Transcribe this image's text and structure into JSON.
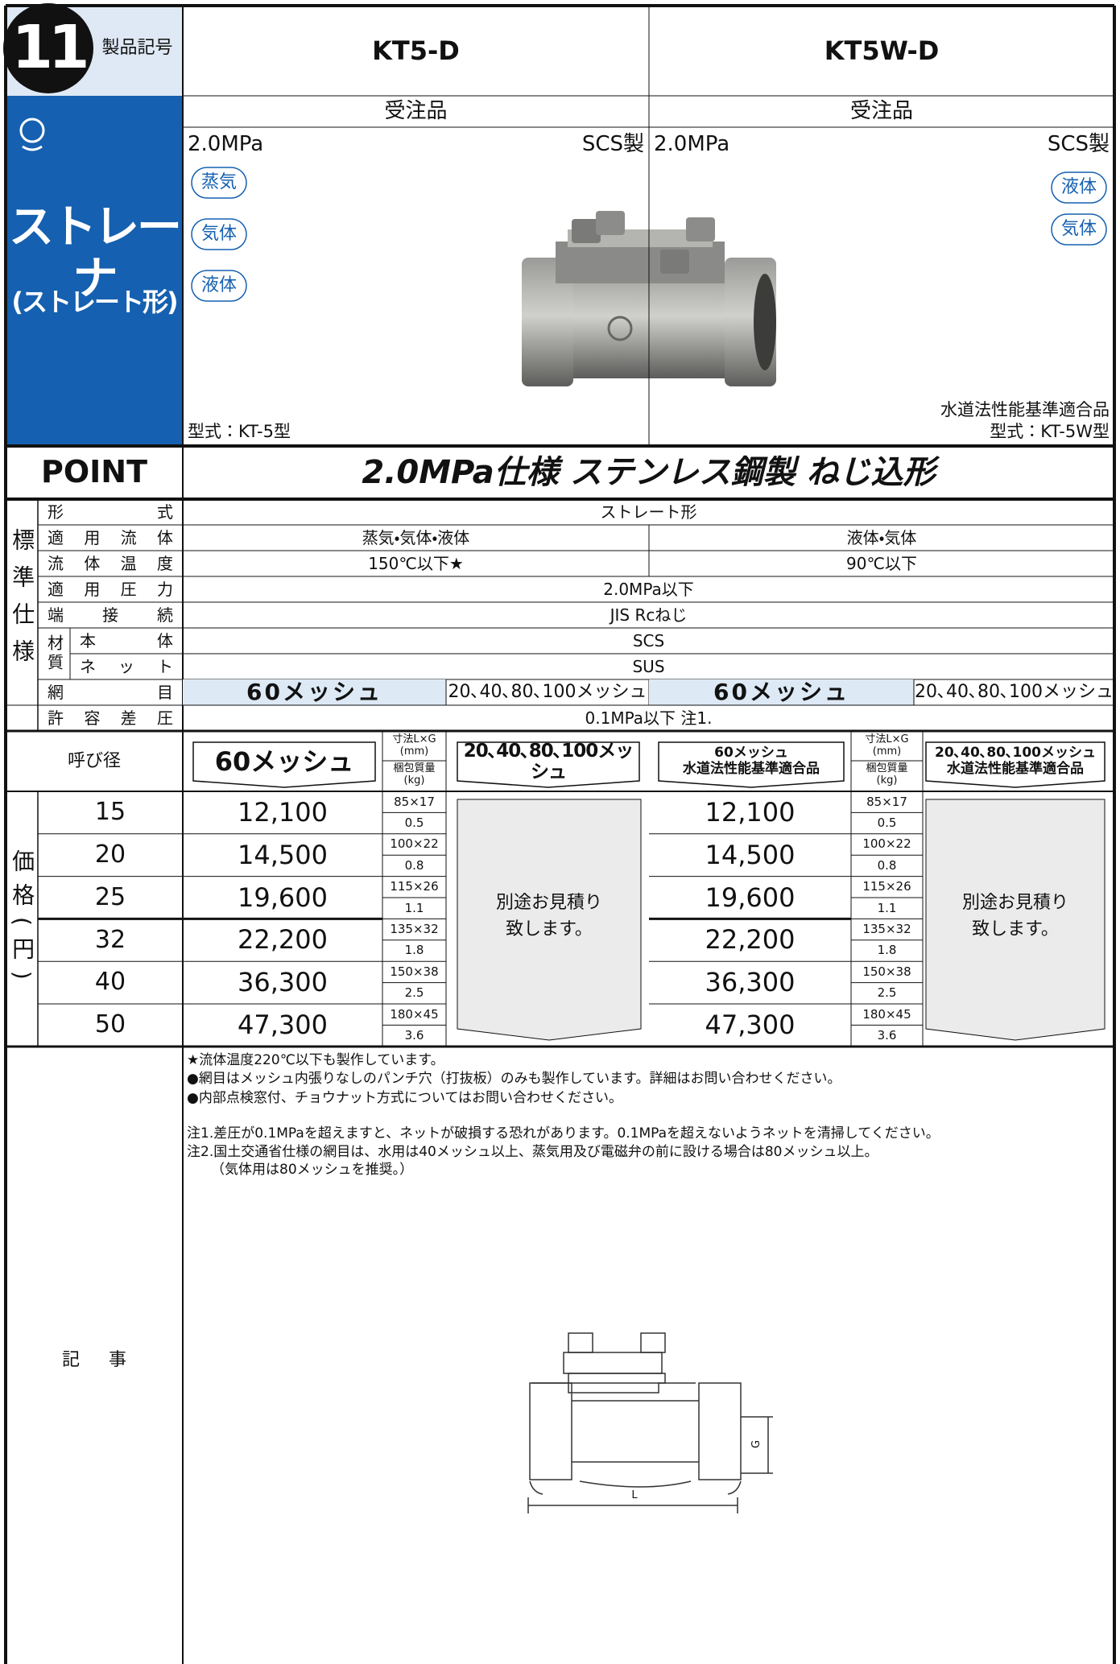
{
  "header": {
    "number": "11",
    "code_label": "製品記号",
    "models": [
      "KT5-D",
      "KT5W-D"
    ]
  },
  "category": {
    "title": "ストレーナ",
    "subtitle": "(ストレート形)"
  },
  "products": [
    {
      "order_type": "受注品",
      "pressure": "2.0MPa",
      "material": "SCS製",
      "fluids": [
        "蒸気",
        "気体",
        "液体"
      ],
      "model": "型式：KT-5型"
    },
    {
      "order_type": "受注品",
      "pressure": "2.0MPa",
      "material": "SCS製",
      "fluids": [
        "液体",
        "気体"
      ],
      "certification": "水道法性能基準適合品",
      "model": "型式：KT-5W型"
    }
  ],
  "point": {
    "label": "POINT",
    "text": "2.0MPa仕様 ステンレス鋼製 ねじ込形"
  },
  "spec": {
    "section_label": "標準仕様",
    "material_label": "材質",
    "rows": [
      {
        "label": "形式",
        "values": [
          "ストレート形"
        ]
      },
      {
        "label": "適用流体",
        "values": [
          "蒸気・気体・液体",
          "液体・気体"
        ]
      },
      {
        "label": "流体温度",
        "values": [
          "150℃以下★",
          "90℃以下"
        ]
      },
      {
        "label": "適用圧力",
        "values": [
          "2.0MPa以下"
        ]
      },
      {
        "label": "端接続",
        "values": [
          "JIS Rcねじ"
        ]
      },
      {
        "label": "本体",
        "values": [
          "SCS"
        ]
      },
      {
        "label": "ネット",
        "values": [
          "SUS"
        ]
      },
      {
        "label": "網目",
        "values": [
          "60メッシュ",
          "20､40､80､100メッシュ",
          "60メッシュ",
          "20､40､80､100メッシュ"
        ]
      },
      {
        "label": "許容差圧",
        "values": [
          "0.1MPa以下 注1."
        ]
      }
    ]
  },
  "price": {
    "section_label": "価格(円)",
    "size_header": "呼び径",
    "columns": {
      "mesh60": "60メッシュ",
      "mesh_other": "20､40､80､100メッシュ",
      "dimension": "寸法L×G\n(mm)",
      "weight": "梱包質量\n(kg)",
      "mesh60_w": "60メッシュ\n水道法性能基準適合品",
      "mesh_other_w": "20､40､80､100メッシュ\n水道法性能基準適合品"
    },
    "quote": "別途お見積り\n致します。",
    "rows": [
      {
        "size": "15",
        "price": "12,100",
        "dimension": "85×17",
        "weight": "0.5",
        "price_w": "12,100"
      },
      {
        "size": "20",
        "price": "14,500",
        "dimension": "100×22",
        "weight": "0.8",
        "price_w": "14,500"
      },
      {
        "size": "25",
        "price": "19,600",
        "dimension": "115×26",
        "weight": "1.1",
        "price_w": "19,600"
      },
      {
        "size": "32",
        "price": "22,200",
        "dimension": "135×32",
        "weight": "1.8",
        "price_w": "22,200"
      },
      {
        "size": "40",
        "price": "36,300",
        "dimension": "150×38",
        "weight": "2.5",
        "price_w": "36,300"
      },
      {
        "size": "50",
        "price": "47,300",
        "dimension": "180×45",
        "weight": "3.6",
        "price_w": "47,300"
      }
    ]
  },
  "notes": {
    "label": "記事",
    "lines": [
      "★流体温度220℃以下も製作しています。",
      "●網目はメッシュ内張りなしのパンチ穴（打抜板）のみも製作しています。詳細はお問い合わせください。",
      "●内部点検窓付、チョウナット方式についてはお問い合わせください。",
      "注1.差圧が0.1MPaを超えますと、ネットが破損する恐れがあります。0.1MPaを超えないようネットを清掃してください。",
      "注2.国土交通省仕様の網目は、水用は40メッシュ以上、蒸気用及び電磁弁の前に設ける場合は80メッシュ以上。",
      "（気体用は80メッシュを推奨。）"
    ],
    "drawing_labels": {
      "g": "G",
      "l": "L"
    }
  }
}
